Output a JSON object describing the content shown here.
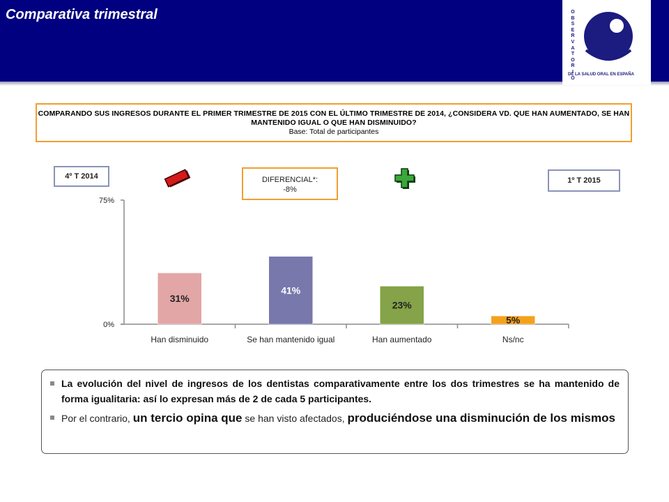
{
  "header": {
    "title": "Comparativa trimestral"
  },
  "logo": {
    "letters": [
      "O",
      "B",
      "S",
      "E",
      "R",
      "V",
      "A",
      "T",
      "O",
      "R",
      "I",
      "O"
    ],
    "caption": "DE LA SALUD ORAL EN ESPAÑA",
    "color": "#1b1b80"
  },
  "question": {
    "text": "COMPARANDO SUS INGRESOS DURANTE EL PRIMER TRIMESTRE DE 2015 CON EL ÚLTIMO TRIMESTRE DE 2014, ¿CONSIDERA VD. QUE HAN AUMENTADO, SE HAN MANTENIDO IGUAL O QUE HAN DISMINUIDO?",
    "base": "Base: Total de participantes"
  },
  "tags": {
    "left": "4º T 2014",
    "right": "1º T 2015"
  },
  "differential": {
    "label": "DIFERENCIAL*:",
    "value": "-8%"
  },
  "icons": {
    "minus": "minus-icon",
    "plus": "plus-icon"
  },
  "chart_data": {
    "type": "bar",
    "categories": [
      "Han disminuido",
      "Se han mantenido igual",
      "Han aumentado",
      "Ns/nc"
    ],
    "values": [
      31,
      41,
      23,
      5
    ],
    "data_labels": [
      "31%",
      "41%",
      "23%",
      "5%"
    ],
    "colors": [
      "#e2a6a6",
      "#7878ad",
      "#85a348",
      "#f4a21c"
    ],
    "label_colors": [
      "#222222",
      "#ffffff",
      "#222222",
      "#222222"
    ],
    "ylim": [
      0,
      75
    ],
    "yticks": [
      "0%",
      "75%"
    ],
    "grid": false
  },
  "summary": {
    "bullet1": "La evolución del nivel de ingresos de los dentistas comparativamente entre los dos trimestres se ha mantenido de forma igualitaria: así lo expresan más de 2 de cada 5 participantes.",
    "bullet2_a": "Por el contrario, ",
    "bullet2_b": "un tercio opina que",
    "bullet2_c": " se han visto afectados, ",
    "bullet2_d": "produciéndose una disminución de los mismos"
  }
}
